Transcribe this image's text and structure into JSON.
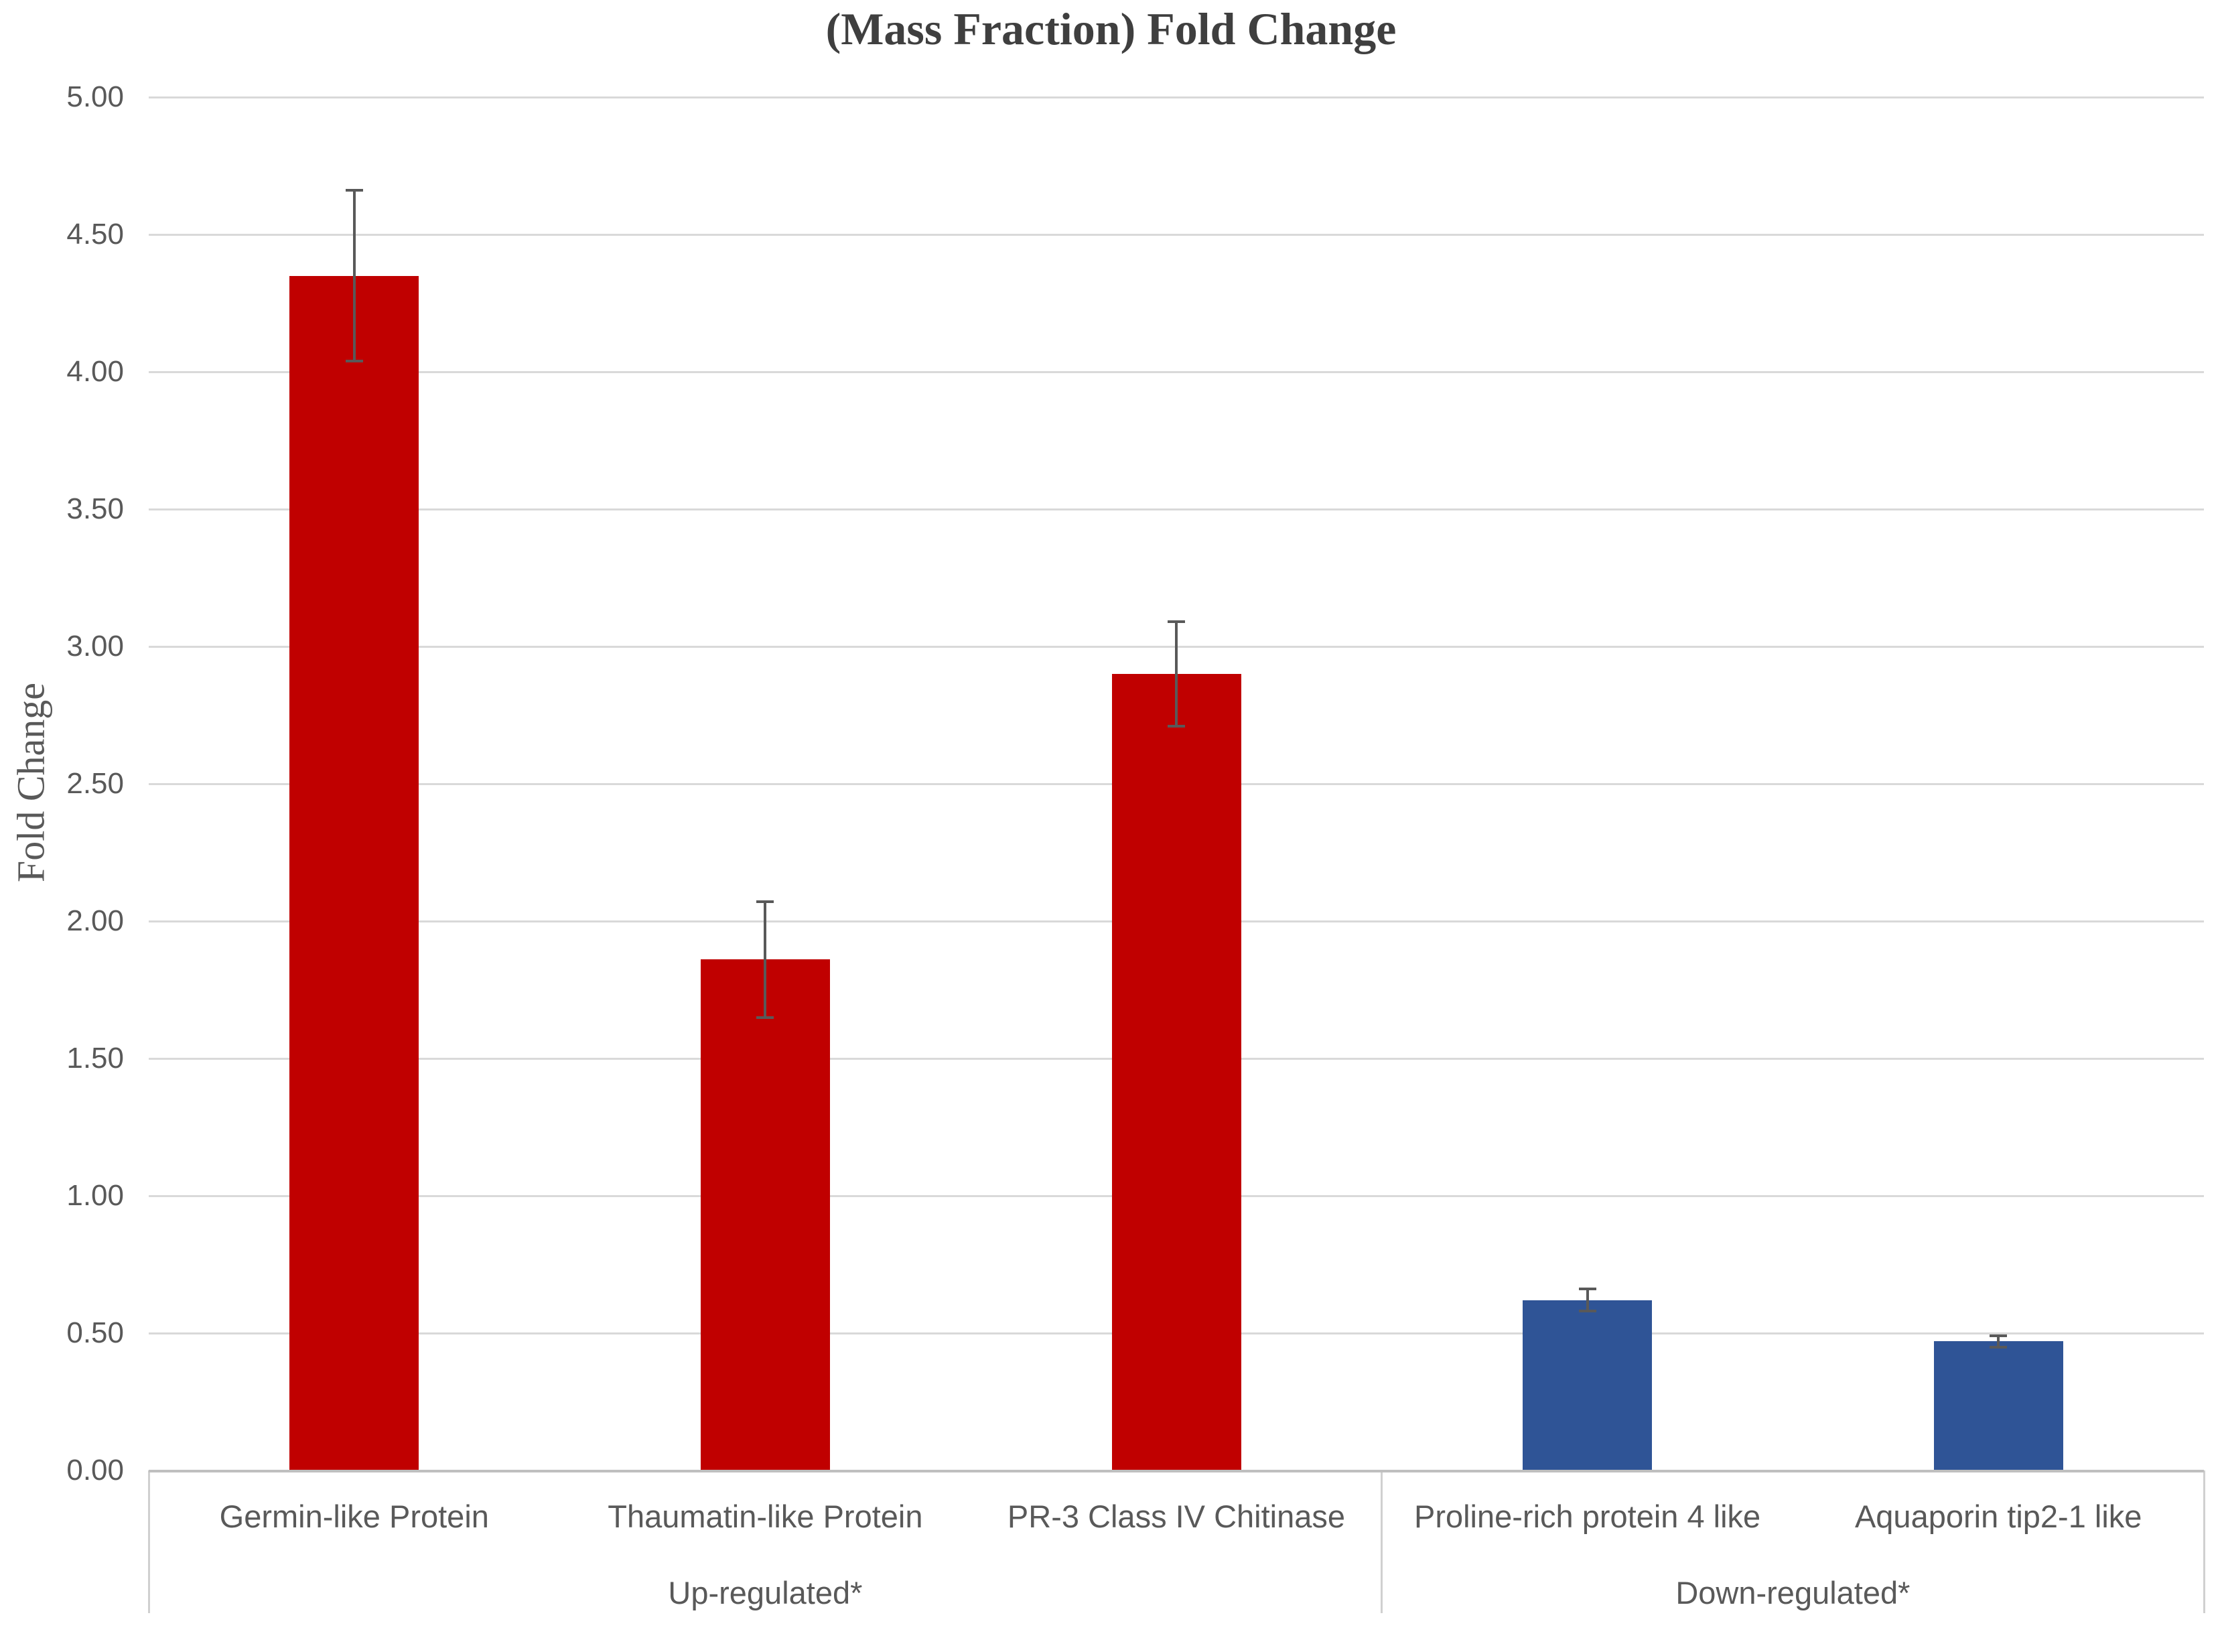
{
  "chart_data": {
    "type": "bar",
    "title": "(Mass Fraction) Fold Change",
    "ylabel": "Fold Change",
    "ylim": [
      0,
      5
    ],
    "ytick_step": 0.5,
    "y_tick_labels": [
      "0.00",
      "0.50",
      "1.00",
      "1.50",
      "2.00",
      "2.50",
      "3.00",
      "3.50",
      "4.00",
      "4.50",
      "5.00"
    ],
    "categories": [
      "Germin-like Protein",
      "Thaumatin-like Protein",
      "PR-3 Class IV Chitinase",
      "Proline-rich protein 4 like",
      "Aquaporin tip2-1 like"
    ],
    "values": [
      4.35,
      1.86,
      2.9,
      0.62,
      0.47
    ],
    "errors": [
      0.31,
      0.21,
      0.19,
      0.04,
      0.02
    ],
    "bar_colors": [
      "#C00000",
      "#C00000",
      "#C00000",
      "#2F5496",
      "#2F5496"
    ],
    "groups": [
      {
        "label": "Up-regulated*",
        "start": 0,
        "end": 3
      },
      {
        "label": "Down-regulated*",
        "start": 3,
        "end": 5
      }
    ],
    "grid": true,
    "legend": false,
    "colors": {
      "up_regulated_bar": "#C00000",
      "down_regulated_bar": "#2F5496",
      "gridline": "#D9D9D9",
      "axis_line": "#BFBFBF",
      "error_bar": "#595959",
      "label_text": "#595959",
      "title_text": "#3F3F3F"
    }
  }
}
